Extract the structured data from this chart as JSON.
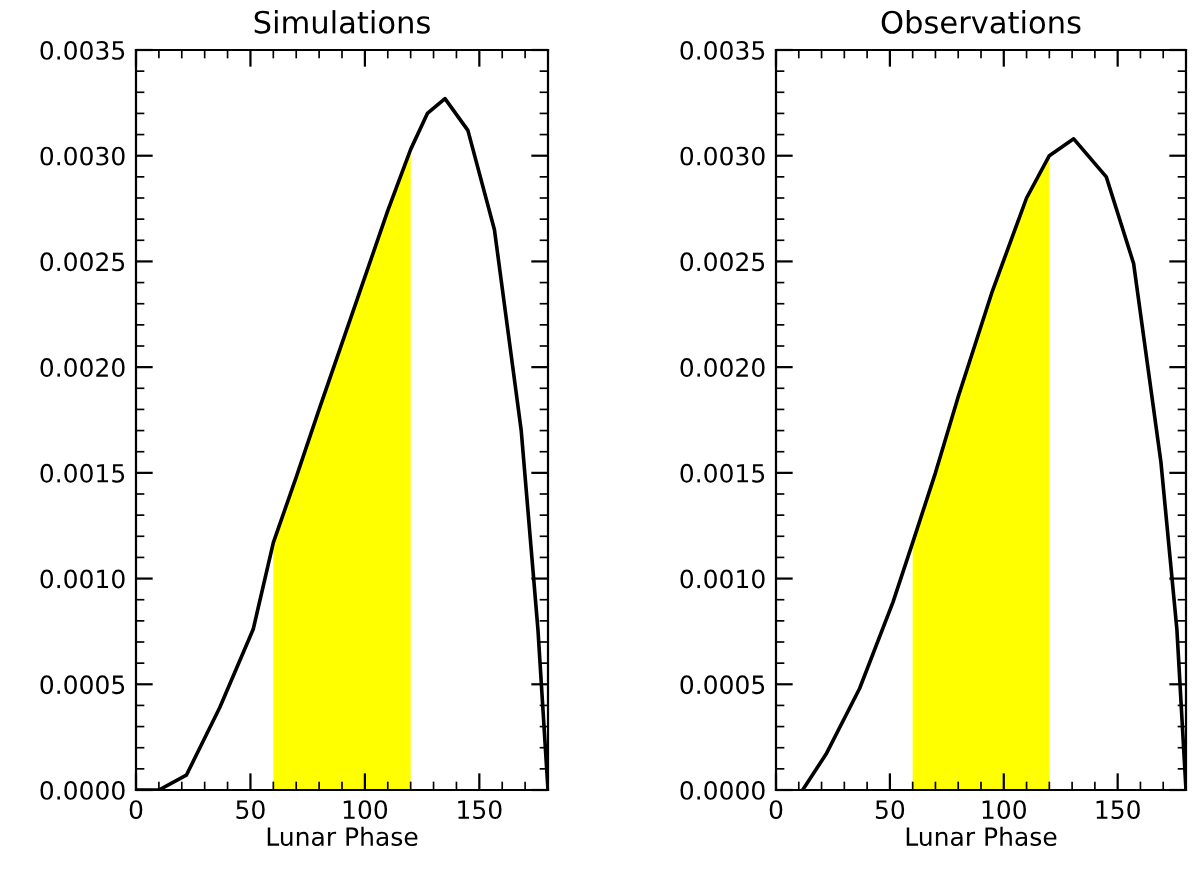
{
  "chart_data": [
    {
      "type": "line",
      "title": "Simulations",
      "xlabel": "Lunar Phase",
      "xlim": [
        0,
        180
      ],
      "xticks": [
        0,
        50,
        100,
        150
      ],
      "ylim": [
        0,
        0.0035
      ],
      "yticks": [
        {
          "value": 0,
          "label": "0.0000"
        },
        {
          "value": 0.0005,
          "label": "0.0005"
        },
        {
          "value": 0.001,
          "label": "0.0010"
        },
        {
          "value": 0.0015,
          "label": "0.0015"
        },
        {
          "value": 0.002,
          "label": "0.0020"
        },
        {
          "value": 0.0025,
          "label": "0.0025"
        },
        {
          "value": 0.003,
          "label": "0.0030"
        },
        {
          "value": 0.0035,
          "label": "0.0035"
        }
      ],
      "grid": false,
      "legend": false,
      "series": [
        {
          "type": "area",
          "color": "#ffff00",
          "x": [
            60,
            70,
            80,
            95,
            110,
            120
          ],
          "values": [
            0.00117,
            0.00148,
            0.0018,
            0.00227,
            0.00274,
            0.00303
          ]
        },
        {
          "color": "#000000",
          "x": [
            0,
            10,
            22,
            36.6,
            51.2,
            60,
            70,
            80,
            95,
            110,
            120,
            127.3,
            135,
            145,
            156.6,
            168.3,
            175.6,
            180
          ],
          "values": [
            0,
            0,
            7e-05,
            0.00039,
            0.00076,
            0.00117,
            0.00148,
            0.0018,
            0.00227,
            0.00274,
            0.00303,
            0.0032,
            0.00327,
            0.00312,
            0.00265,
            0.0017,
            0.00076,
            0
          ]
        }
      ]
    },
    {
      "type": "line",
      "title": "Observations",
      "xlabel": "Lunar Phase",
      "xlim": [
        0,
        180
      ],
      "xticks": [
        0,
        50,
        100,
        150
      ],
      "ylim": [
        0,
        0.0035
      ],
      "yticks": [
        {
          "value": 0,
          "label": "0.0000"
        },
        {
          "value": 0.0005,
          "label": "0.0005"
        },
        {
          "value": 0.001,
          "label": "0.0010"
        },
        {
          "value": 0.0015,
          "label": "0.0015"
        },
        {
          "value": 0.002,
          "label": "0.0020"
        },
        {
          "value": 0.0025,
          "label": "0.0025"
        },
        {
          "value": 0.003,
          "label": "0.0030"
        },
        {
          "value": 0.0035,
          "label": "0.0035"
        }
      ],
      "grid": false,
      "legend": false,
      "series": [
        {
          "type": "area",
          "color": "#ffff00",
          "x": [
            60,
            70,
            80,
            95,
            110,
            120
          ],
          "values": [
            0.00117,
            0.0015,
            0.00186,
            0.00236,
            0.0028,
            0.003
          ]
        },
        {
          "color": "#000000",
          "x": [
            11.7,
            22,
            36.7,
            51.4,
            60,
            70,
            80,
            95,
            110,
            120,
            130.7,
            145,
            157,
            169,
            176,
            180
          ],
          "values": [
            0,
            0.00017,
            0.00048,
            0.00089,
            0.00117,
            0.0015,
            0.00186,
            0.00236,
            0.0028,
            0.003,
            0.00308,
            0.0029,
            0.00249,
            0.00155,
            0.00076,
            0
          ]
        }
      ]
    }
  ]
}
